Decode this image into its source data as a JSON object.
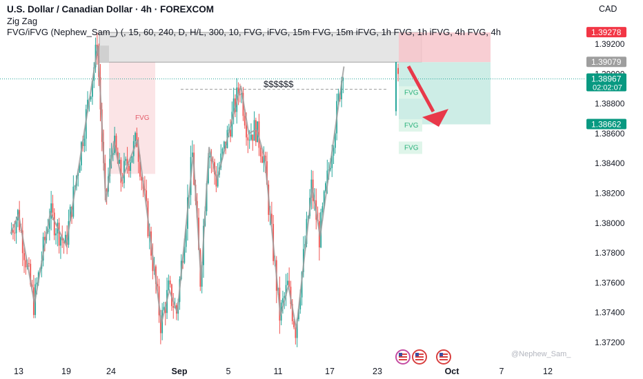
{
  "header": {
    "title": "U.S. Dollar / Canadian Dollar · 4h · FOREXCOM",
    "indicator1": "Zig Zag",
    "indicator2": "FVG/iFVG (Nephew_Sam_) (, 15, 60, 240, D, H/L, 300, 10, FVG, iFVG, 15m FVG, 15m iFVG, 1h FVG, 1h iFVG, 4h FVG, 4h"
  },
  "currency": "CAD",
  "watermark": "@Nephew_Sam_",
  "colors": {
    "up": "#26a69a",
    "down": "#ef5350",
    "zigzag": "#9e9e9e",
    "stop_zone": "#f7c6cb",
    "target_zone": "#c8ebe3",
    "arrow": "#e8394a",
    "fvg_bear": "#fbe4e6",
    "fvg_bull": "#dff5ea"
  },
  "chart_data": {
    "type": "candlestick",
    "timeframe": "4h",
    "symbol": "USDCAD",
    "ylim": [
      1.371,
      1.395
    ],
    "y_ticks": [
      "1.39200",
      "1.39000",
      "1.38800",
      "1.38600",
      "1.38400",
      "1.38200",
      "1.38000",
      "1.37800",
      "1.37600",
      "1.37400",
      "1.37200"
    ],
    "x_ticks": [
      "13",
      "19",
      "24",
      "Sep",
      "5",
      "11",
      "17",
      "23",
      "Oct",
      "7",
      "12"
    ],
    "price_labels": [
      {
        "text": "1.39278",
        "value": 1.39278,
        "role": "stop"
      },
      {
        "text": "1.39079",
        "value": 1.39079,
        "role": "entry"
      },
      {
        "text": "1.38967",
        "value": 1.38967,
        "role": "current",
        "countdown": "02:02:07"
      },
      {
        "text": "1.38662",
        "value": 1.38662,
        "role": "target"
      }
    ],
    "annotations": [
      {
        "text": "$$$$$$",
        "value": 1.3893
      },
      {
        "text": "FVG",
        "value": 1.3871,
        "kind": "bearish"
      },
      {
        "text": "FVG",
        "value": 1.3888,
        "kind": "bullish"
      },
      {
        "text": "FVG",
        "value": 1.3866,
        "kind": "bullish"
      },
      {
        "text": "FVG",
        "value": 1.3851,
        "kind": "bullish"
      }
    ],
    "zigzag": [
      {
        "date": "Aug 12",
        "value": 1.3793
      },
      {
        "date": "Aug 13",
        "value": 1.3806
      },
      {
        "date": "Aug 15",
        "value": 1.3746
      },
      {
        "date": "Aug 17",
        "value": 1.3807
      },
      {
        "date": "Aug 19",
        "value": 1.3785
      },
      {
        "date": "Aug 23",
        "value": 1.3919
      },
      {
        "date": "Aug 24",
        "value": 1.3814
      },
      {
        "date": "Aug 25",
        "value": 1.3855
      },
      {
        "date": "Aug 26",
        "value": 1.3829
      },
      {
        "date": "Aug 28",
        "value": 1.3856
      },
      {
        "date": "Aug 31",
        "value": 1.3733
      },
      {
        "date": "Sep 01",
        "value": 1.3755
      },
      {
        "date": "Sep 02",
        "value": 1.374
      },
      {
        "date": "Sep 04",
        "value": 1.3846
      },
      {
        "date": "Sep 05",
        "value": 1.3762
      },
      {
        "date": "Sep 06",
        "value": 1.3851
      },
      {
        "date": "Sep 07",
        "value": 1.3829
      },
      {
        "date": "Sep 10",
        "value": 1.3892
      },
      {
        "date": "Sep 11",
        "value": 1.386
      },
      {
        "date": "Sep 12",
        "value": 1.3863
      },
      {
        "date": "Sep 13",
        "value": 1.3844
      },
      {
        "date": "Sep 15",
        "value": 1.3738
      },
      {
        "date": "Sep 16",
        "value": 1.3758
      },
      {
        "date": "Sep 17",
        "value": 1.3729
      },
      {
        "date": "Sep 19",
        "value": 1.3824
      },
      {
        "date": "Sep 20",
        "value": 1.3791
      },
      {
        "date": "Sep 23",
        "value": 1.3905
      }
    ],
    "setup": {
      "entry": 1.39079,
      "stop": 1.39278,
      "target": 1.38662,
      "supply_zone": [
        1.39079,
        1.39278
      ],
      "direction": "short"
    }
  }
}
